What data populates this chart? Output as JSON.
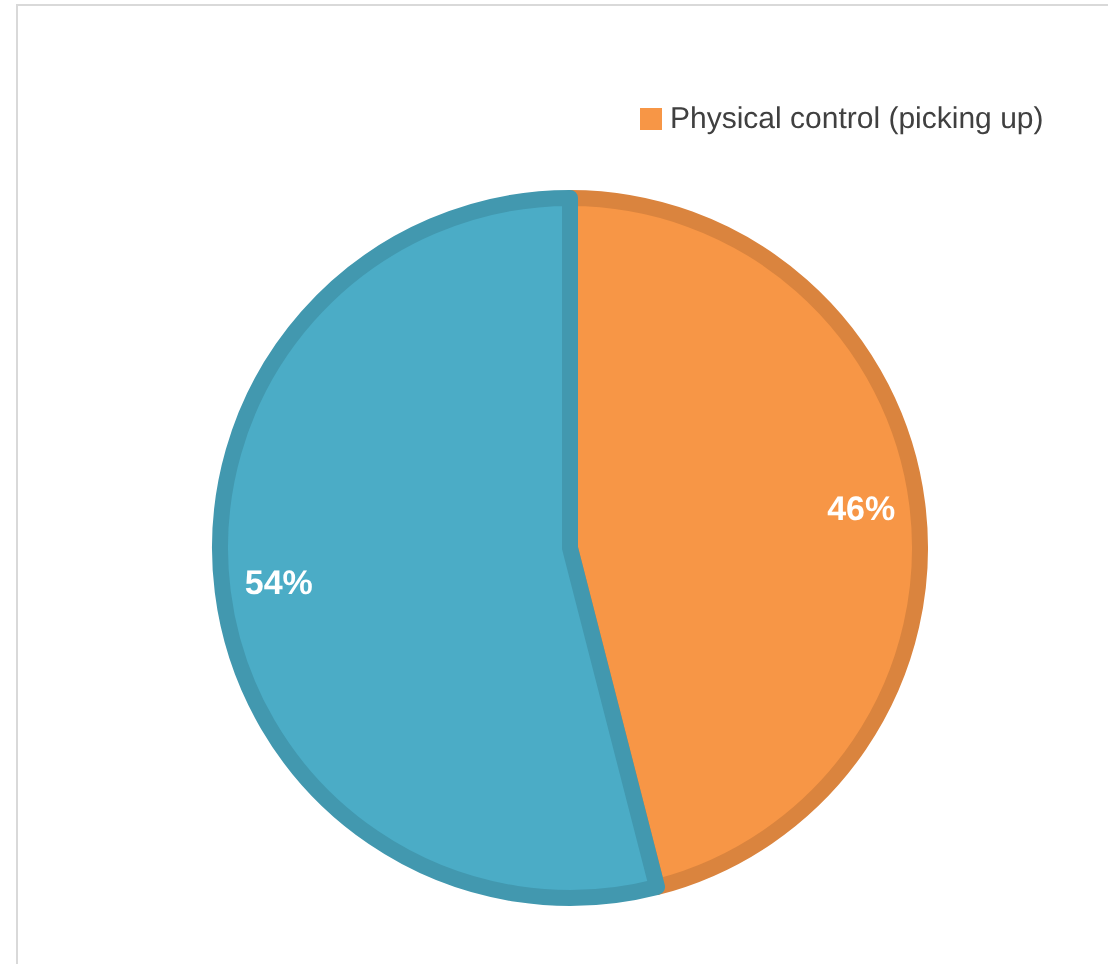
{
  "chart_data": {
    "type": "pie",
    "categories": [
      "Physical control (picking up)",
      null
    ],
    "values": [
      46,
      54
    ],
    "colors": [
      "#f79646",
      "#4bacc6"
    ],
    "value_labels": [
      "46%",
      "54%"
    ],
    "legend": "top"
  }
}
